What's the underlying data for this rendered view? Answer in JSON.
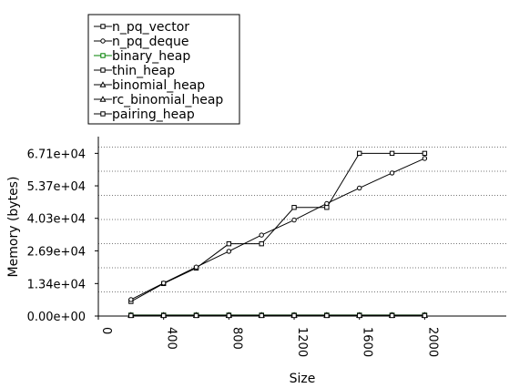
{
  "chart_data": {
    "type": "line",
    "title": "",
    "xlabel": "Size",
    "ylabel": "Memory (bytes)",
    "xlim": [
      0,
      2500
    ],
    "ylim": [
      0,
      74000
    ],
    "x_ticks": [
      0,
      400,
      800,
      1200,
      1600,
      2000
    ],
    "x_tick_labels": [
      "0",
      "400",
      "800",
      "1200",
      "1600",
      "2000"
    ],
    "y_ticks": [
      0,
      13400,
      26900,
      40300,
      53700,
      67100
    ],
    "y_tick_labels": [
      "0.00e+00",
      "1.34e+04",
      "2.69e+04",
      "4.03e+04",
      "5.37e+04",
      "6.71e+04"
    ],
    "grid": true,
    "legend_position": "top-left",
    "x": [
      200,
      400,
      600,
      800,
      1000,
      1200,
      1400,
      1600,
      1800,
      2000
    ],
    "series": [
      {
        "name": "n_pq_vector",
        "marker": "square",
        "color": "#000000",
        "values": [
          6000,
          13400,
          19800,
          29800,
          29800,
          44800,
          44800,
          67100,
          67100,
          67100
        ]
      },
      {
        "name": "n_pq_deque",
        "marker": "circle",
        "color": "#000000",
        "values": [
          6800,
          13600,
          20200,
          26700,
          33400,
          39600,
          46400,
          52800,
          59000,
          65000
        ]
      },
      {
        "name": "binary_heap",
        "marker": "square",
        "color": "#008000",
        "values": [
          400,
          400,
          400,
          400,
          400,
          400,
          400,
          400,
          400,
          400
        ]
      },
      {
        "name": "thin_heap",
        "marker": "square",
        "color": "#000000",
        "values": [
          300,
          300,
          300,
          300,
          300,
          300,
          300,
          300,
          300,
          300
        ]
      },
      {
        "name": "binomial_heap",
        "marker": "triangle",
        "color": "#000000",
        "values": [
          300,
          300,
          300,
          300,
          300,
          300,
          300,
          300,
          300,
          300
        ]
      },
      {
        "name": "rc_binomial_heap",
        "marker": "triangle",
        "color": "#000000",
        "values": [
          300,
          300,
          300,
          300,
          300,
          300,
          300,
          300,
          300,
          300
        ]
      },
      {
        "name": "pairing_heap",
        "marker": "square",
        "color": "#000000",
        "values": [
          200,
          200,
          200,
          200,
          200,
          200,
          200,
          200,
          200,
          200
        ]
      }
    ]
  }
}
